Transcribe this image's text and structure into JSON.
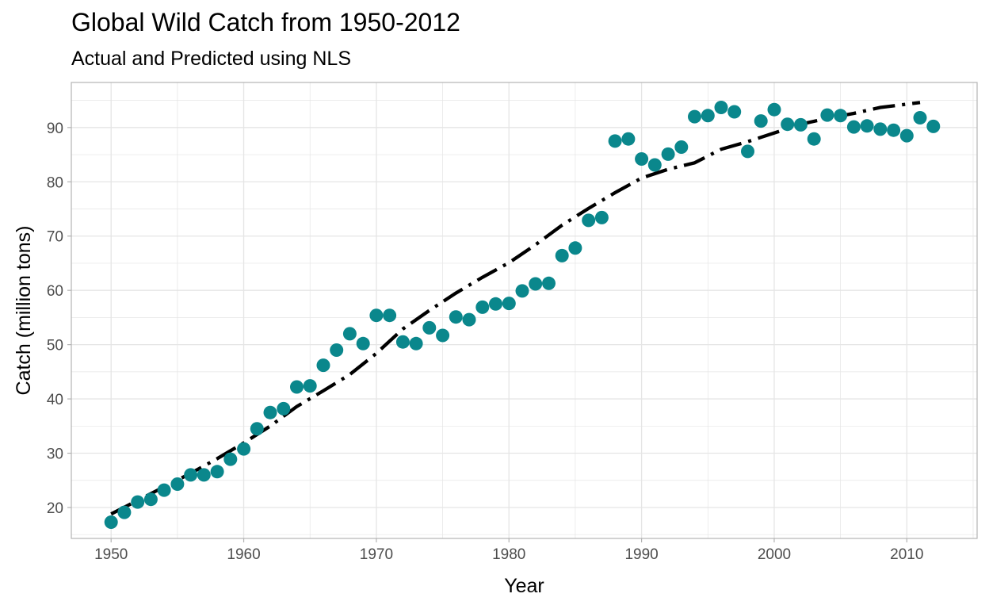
{
  "title": "Global Wild Catch from 1950-2012",
  "subtitle": "Actual and Predicted using NLS",
  "colors": {
    "points": "#0A878C",
    "fit_line": "#000000",
    "grid": "#e5e5e5",
    "panel_border": "#b3b3b3"
  },
  "chart_data": {
    "type": "scatter",
    "title": "Global Wild Catch from 1950-2012",
    "subtitle": "Actual and Predicted using NLS",
    "xlabel": "Year",
    "ylabel": "Catch (million tons)",
    "xlim": [
      1947,
      2015.3
    ],
    "ylim": [
      14.3,
      98.3
    ],
    "x_ticks": [
      1950,
      1960,
      1970,
      1980,
      1990,
      2000,
      2010
    ],
    "y_ticks": [
      20,
      30,
      40,
      50,
      60,
      70,
      80,
      90
    ],
    "grid": true,
    "legend": "none",
    "series": [
      {
        "kind": "points",
        "x": [
          1950,
          1951,
          1952,
          1953,
          1954,
          1955,
          1956,
          1957,
          1958,
          1959,
          1960,
          1961,
          1962,
          1963,
          1964,
          1965,
          1966,
          1967,
          1968,
          1969,
          1970,
          1971,
          1972,
          1973,
          1974,
          1975,
          1976,
          1977,
          1978,
          1979,
          1980,
          1981,
          1982,
          1983,
          1984,
          1985,
          1986,
          1987,
          1988,
          1989,
          1990,
          1991,
          1992,
          1993,
          1994,
          1995,
          1996,
          1997,
          1998,
          1999,
          2000,
          2001,
          2002,
          2003,
          2004,
          2005,
          2006,
          2007,
          2008,
          2009,
          2010,
          2011,
          2012
        ],
        "y": [
          17.3,
          19.1,
          21.0,
          21.5,
          23.2,
          24.3,
          26.0,
          26.0,
          26.6,
          28.9,
          30.8,
          34.5,
          37.5,
          38.2,
          42.2,
          42.4,
          46.2,
          49.0,
          52.0,
          50.2,
          55.4,
          55.4,
          50.5,
          50.2,
          53.1,
          51.7,
          55.1,
          54.6,
          56.9,
          57.5,
          57.6,
          59.9,
          61.2,
          61.3,
          66.4,
          67.8,
          72.9,
          73.4,
          87.5,
          87.9,
          84.2,
          83.1,
          85.1,
          86.4,
          92.0,
          92.2,
          93.7,
          92.9,
          85.6,
          91.2,
          93.3,
          90.6,
          90.5,
          87.9,
          92.3,
          92.2,
          90.1,
          90.3,
          89.7,
          89.5,
          88.5,
          91.8,
          90.2
        ]
      },
      {
        "kind": "line",
        "style": "dotdash",
        "x": [
          1950,
          1952,
          1954,
          1956,
          1958,
          1960,
          1962,
          1964,
          1966,
          1968,
          1970,
          1972,
          1974,
          1976,
          1978,
          1980,
          1982,
          1984,
          1986,
          1988,
          1990,
          1992,
          1994,
          1996,
          1998,
          2000,
          2002,
          2004,
          2006,
          2008,
          2010,
          2011
        ],
        "y": [
          18.8,
          21.3,
          23.8,
          26.3,
          29.0,
          31.9,
          35.0,
          38.6,
          41.5,
          44.5,
          48.4,
          52.9,
          56.3,
          59.5,
          62.4,
          65.1,
          68.4,
          72.0,
          75.1,
          78.0,
          80.7,
          82.3,
          83.5,
          86.0,
          87.4,
          89.0,
          90.6,
          91.7,
          92.6,
          93.7,
          94.3,
          94.6
        ]
      }
    ]
  }
}
